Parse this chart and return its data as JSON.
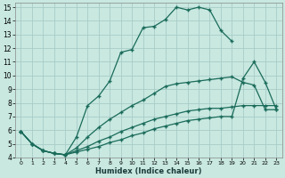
{
  "xlabel": "Humidex (Indice chaleur)",
  "bg_color": "#c8e8e0",
  "grid_color": "#a8ccc8",
  "line_color": "#1a6b5a",
  "xlim": [
    -0.5,
    23.5
  ],
  "ylim": [
    4,
    15.3
  ],
  "xticks": [
    0,
    1,
    2,
    3,
    4,
    5,
    6,
    7,
    8,
    9,
    10,
    11,
    12,
    13,
    14,
    15,
    16,
    17,
    18,
    19,
    20,
    21,
    22,
    23
  ],
  "yticks": [
    4,
    5,
    6,
    7,
    8,
    9,
    10,
    11,
    12,
    13,
    14,
    15
  ],
  "line1_x": [
    0,
    1,
    2,
    3,
    4,
    5,
    6,
    7,
    8,
    9,
    10,
    11,
    12,
    13,
    14,
    15,
    16,
    17,
    18,
    19
  ],
  "line1_y": [
    5.9,
    5.0,
    4.5,
    4.3,
    4.2,
    5.5,
    7.8,
    8.5,
    9.6,
    11.7,
    11.9,
    13.5,
    13.6,
    14.1,
    15.0,
    14.8,
    15.0,
    14.8,
    13.3,
    12.5
  ],
  "line2_x": [
    0,
    1,
    2,
    3,
    4,
    5,
    6,
    7,
    8,
    9,
    10,
    11,
    12,
    13,
    14,
    15,
    16,
    17,
    18,
    19,
    20,
    21,
    22,
    23
  ],
  "line2_y": [
    5.9,
    5.0,
    4.5,
    4.3,
    4.2,
    4.7,
    5.5,
    6.2,
    6.8,
    7.3,
    7.8,
    8.2,
    8.7,
    9.2,
    9.4,
    9.5,
    9.6,
    9.7,
    9.8,
    9.9,
    9.5,
    9.3,
    7.5,
    7.5
  ],
  "line3_x": [
    0,
    1,
    2,
    3,
    4,
    5,
    6,
    7,
    8,
    9,
    10,
    11,
    12,
    13,
    14,
    15,
    16,
    17,
    18,
    19,
    20,
    21,
    22,
    23
  ],
  "line3_y": [
    5.9,
    5.0,
    4.5,
    4.3,
    4.2,
    4.5,
    4.8,
    5.2,
    5.5,
    5.9,
    6.2,
    6.5,
    6.8,
    7.0,
    7.2,
    7.4,
    7.5,
    7.6,
    7.6,
    7.7,
    7.8,
    7.8,
    7.8,
    7.8
  ],
  "line4_x": [
    0,
    1,
    2,
    3,
    4,
    5,
    6,
    7,
    8,
    9,
    10,
    11,
    12,
    13,
    14,
    15,
    16,
    17,
    18,
    19,
    20,
    21,
    22,
    23
  ],
  "line4_y": [
    5.9,
    5.0,
    4.5,
    4.3,
    4.2,
    4.4,
    4.6,
    4.8,
    5.1,
    5.3,
    5.6,
    5.8,
    6.1,
    6.3,
    6.5,
    6.7,
    6.8,
    6.9,
    7.0,
    7.0,
    9.8,
    11.0,
    9.5,
    7.5
  ]
}
